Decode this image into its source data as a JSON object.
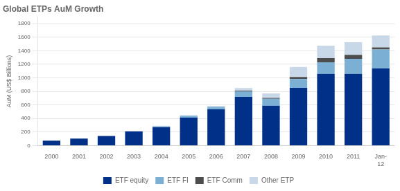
{
  "chart_data": {
    "type": "bar",
    "title": "Global ETPs AuM Growth",
    "ylabel": "AuM (US$ Billions)",
    "categories": [
      "2000",
      "2001",
      "2002",
      "2003",
      "2004",
      "2005",
      "2006",
      "2007",
      "2008",
      "2009",
      "2010",
      "2011",
      "Jan-\n12"
    ],
    "series": [
      {
        "name": "ETF equity",
        "color": "#003087",
        "values": [
          74,
          104,
          141,
          212,
          272,
          412,
          536,
          720,
          590,
          852,
          1060,
          1060,
          1140
        ]
      },
      {
        "name": "ETF FI",
        "color": "#7BAFD4",
        "values": [
          0,
          0,
          0,
          0,
          10,
          25,
          35,
          80,
          100,
          130,
          170,
          220,
          280
        ]
      },
      {
        "name": "ETF Comm",
        "color": "#4D4D4D",
        "values": [
          0,
          0,
          0,
          0,
          0,
          0,
          0,
          10,
          15,
          30,
          60,
          60,
          30
        ]
      },
      {
        "name": "Other ETP",
        "color": "#C8D8E8",
        "values": [
          0,
          0,
          0,
          0,
          10,
          15,
          15,
          40,
          65,
          150,
          185,
          185,
          175
        ]
      }
    ],
    "stacked": true,
    "ylim": [
      0,
      1900
    ],
    "yticks": [
      0,
      200,
      400,
      600,
      800,
      1000,
      1200,
      1400,
      1600,
      1800
    ],
    "grid": "y",
    "legend": "bottom"
  }
}
